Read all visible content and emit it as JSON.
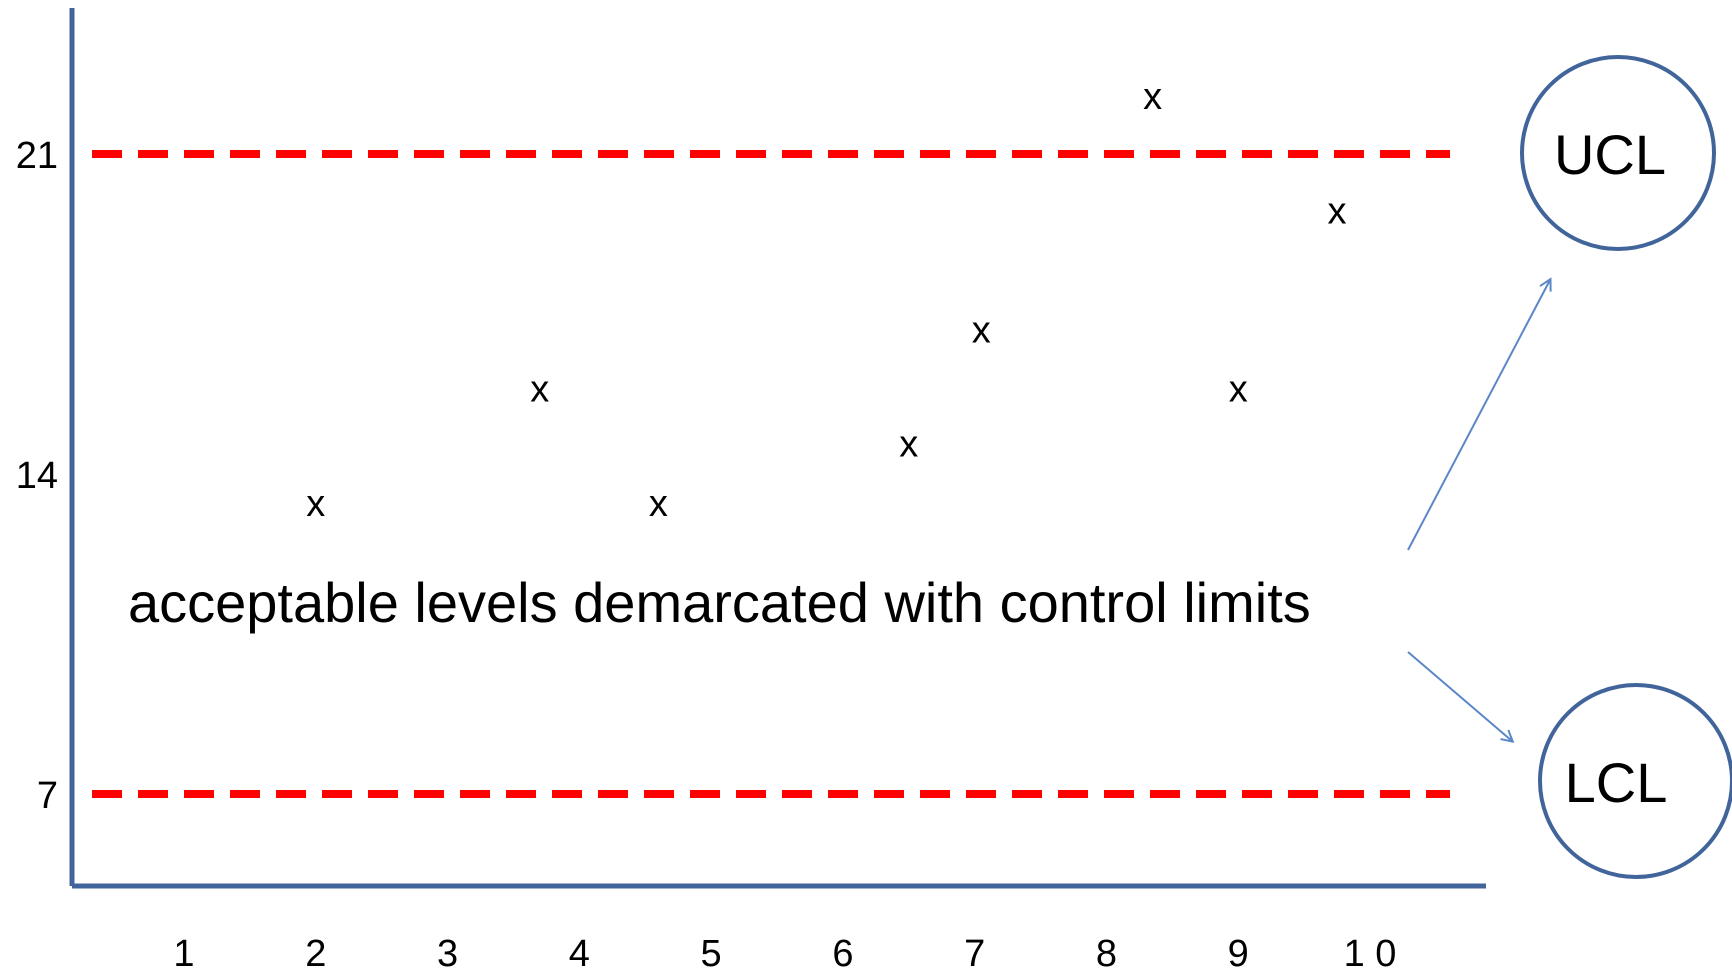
{
  "chart_data": {
    "type": "scatter",
    "title": "",
    "xlabel": "",
    "ylabel": "",
    "x_ticks": [
      "1",
      "2",
      "3",
      "4",
      "5",
      "6",
      "7",
      "8",
      "9",
      "1 0"
    ],
    "y_ticks": [
      {
        "value": 7,
        "label": "7"
      },
      {
        "value": 14,
        "label": "14"
      },
      {
        "value": 21,
        "label": "21"
      }
    ],
    "ylim": [
      5,
      25
    ],
    "xlim": [
      0.5,
      11.0
    ],
    "marker": "x",
    "points": [
      {
        "x": 2.0,
        "y": 13.3
      },
      {
        "x": 3.7,
        "y": 15.8
      },
      {
        "x": 4.6,
        "y": 13.3
      },
      {
        "x": 6.5,
        "y": 14.6
      },
      {
        "x": 7.05,
        "y": 17.1
      },
      {
        "x": 8.35,
        "y": 22.2
      },
      {
        "x": 9.0,
        "y": 15.8
      },
      {
        "x": 9.75,
        "y": 19.7
      }
    ],
    "control_limits": [
      {
        "name": "UCL",
        "value": 21,
        "label": "UCL"
      },
      {
        "name": "LCL",
        "value": 7,
        "label": "LCL"
      }
    ],
    "annotation": "acceptable levels demarcated with control limits",
    "colors": {
      "axis": "#41659a",
      "limit_line": "#ff0000",
      "circle": "#41659a",
      "arrow": "#5b87c8",
      "text": "#000000"
    },
    "grid": false,
    "legend": "none"
  }
}
